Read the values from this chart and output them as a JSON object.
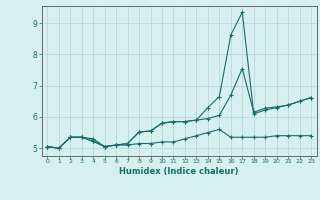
{
  "title": "",
  "xlabel": "Humidex (Indice chaleur)",
  "bg_color": "#d6f0ef",
  "grid_color": "#b8d8d6",
  "line_color": "#1a6b6b",
  "xlim": [
    -0.5,
    23.5
  ],
  "ylim": [
    4.75,
    9.55
  ],
  "xticks": [
    0,
    1,
    2,
    3,
    4,
    5,
    6,
    7,
    8,
    9,
    10,
    11,
    12,
    13,
    14,
    15,
    16,
    17,
    18,
    19,
    20,
    21,
    22,
    23
  ],
  "yticks": [
    5,
    6,
    7,
    8,
    9
  ],
  "line1_x": [
    0,
    1,
    2,
    3,
    4,
    5,
    6,
    7,
    8,
    9,
    10,
    11,
    12,
    13,
    14,
    15,
    16,
    17,
    18,
    19,
    20,
    21,
    22,
    23
  ],
  "line1_y": [
    5.05,
    5.0,
    5.35,
    5.35,
    5.3,
    5.05,
    5.1,
    5.1,
    5.15,
    5.15,
    5.2,
    5.2,
    5.3,
    5.4,
    5.5,
    5.6,
    5.35,
    5.35,
    5.35,
    5.35,
    5.4,
    5.4,
    5.4,
    5.4
  ],
  "line2_x": [
    0,
    1,
    2,
    3,
    4,
    5,
    6,
    7,
    8,
    9,
    10,
    11,
    12,
    13,
    14,
    15,
    16,
    17,
    18,
    19,
    20,
    21,
    22,
    23
  ],
  "line2_y": [
    5.05,
    5.0,
    5.35,
    5.35,
    5.22,
    5.05,
    5.1,
    5.15,
    5.52,
    5.55,
    5.8,
    5.85,
    5.85,
    5.9,
    6.3,
    6.65,
    8.62,
    9.35,
    6.1,
    6.22,
    6.3,
    6.38,
    6.5,
    6.62
  ],
  "line3_x": [
    0,
    1,
    2,
    3,
    4,
    5,
    6,
    7,
    8,
    9,
    10,
    11,
    12,
    13,
    14,
    15,
    16,
    17,
    18,
    19,
    20,
    21,
    22,
    23
  ],
  "line3_y": [
    5.05,
    5.0,
    5.35,
    5.35,
    5.22,
    5.05,
    5.1,
    5.15,
    5.52,
    5.55,
    5.8,
    5.85,
    5.85,
    5.9,
    5.95,
    6.05,
    6.7,
    7.55,
    6.15,
    6.28,
    6.32,
    6.38,
    6.5,
    6.62
  ]
}
